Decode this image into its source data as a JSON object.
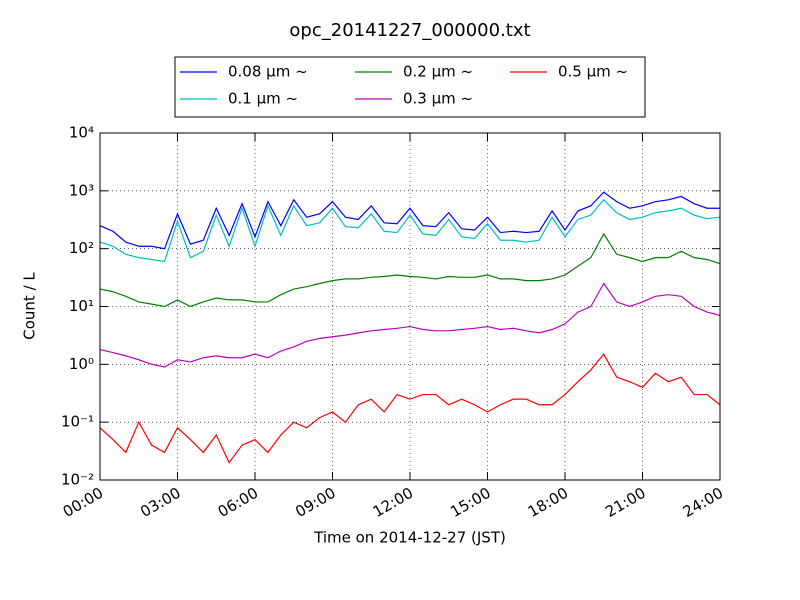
{
  "chart_data": {
    "type": "line",
    "title": "opc_20141227_000000.txt",
    "x_label": "Time on 2014-12-27 (JST)",
    "y_label": "Count / L",
    "log_y": true,
    "grid": true,
    "legend": "upper center",
    "x": [
      0,
      0.5,
      1,
      1.5,
      2,
      2.5,
      3,
      3.5,
      4,
      4.5,
      5,
      5.5,
      6,
      6.5,
      7,
      7.5,
      8,
      8.5,
      9,
      9.5,
      10,
      10.5,
      11,
      11.5,
      12,
      12.5,
      13,
      13.5,
      14,
      14.5,
      15,
      15.5,
      16,
      16.5,
      17,
      17.5,
      18,
      18.5,
      19,
      19.5,
      20,
      20.5,
      21,
      21.5,
      22,
      22.5,
      23,
      23.5,
      24
    ],
    "xlim": [
      0,
      24
    ],
    "xticks": [
      {
        "value": 0,
        "label": "00:00"
      },
      {
        "value": 3,
        "label": "03:00"
      },
      {
        "value": 6,
        "label": "06:00"
      },
      {
        "value": 9,
        "label": "09:00"
      },
      {
        "value": 12,
        "label": "12:00"
      },
      {
        "value": 15,
        "label": "15:00"
      },
      {
        "value": 18,
        "label": "18:00"
      },
      {
        "value": 21,
        "label": "21:00"
      },
      {
        "value": 24,
        "label": "24:00"
      }
    ],
    "ylim": [
      0.01,
      10000
    ],
    "yticks": [
      {
        "value": 0.01,
        "label": "10⁻²"
      },
      {
        "value": 0.1,
        "label": "10⁻¹"
      },
      {
        "value": 1,
        "label": "10⁰"
      },
      {
        "value": 10,
        "label": "10¹"
      },
      {
        "value": 100,
        "label": "10²"
      },
      {
        "value": 1000,
        "label": "10³"
      },
      {
        "value": 10000,
        "label": "10⁴"
      }
    ],
    "series": [
      {
        "name": "0.08 μm ~",
        "color": "#0000ff",
        "values": [
          250,
          200,
          130,
          110,
          110,
          100,
          400,
          120,
          140,
          500,
          170,
          600,
          160,
          650,
          250,
          700,
          350,
          400,
          650,
          350,
          320,
          550,
          280,
          270,
          500,
          250,
          240,
          420,
          220,
          210,
          350,
          190,
          200,
          190,
          200,
          450,
          210,
          450,
          550,
          950,
          650,
          500,
          550,
          650,
          700,
          800,
          600,
          500,
          500
        ]
      },
      {
        "name": "0.1 μm ~",
        "color": "#00bfbf",
        "values": [
          130,
          110,
          80,
          70,
          65,
          60,
          300,
          70,
          90,
          380,
          110,
          500,
          110,
          550,
          170,
          550,
          250,
          280,
          500,
          240,
          230,
          400,
          200,
          190,
          380,
          180,
          170,
          320,
          160,
          150,
          270,
          140,
          140,
          130,
          140,
          350,
          160,
          320,
          380,
          700,
          420,
          320,
          350,
          420,
          450,
          500,
          380,
          330,
          350
        ]
      },
      {
        "name": "0.2 μm ~",
        "color": "#008000",
        "values": [
          20,
          18,
          15,
          12,
          11,
          10,
          13,
          10,
          12,
          14,
          13,
          13,
          12,
          12,
          16,
          20,
          22,
          25,
          28,
          30,
          30,
          32,
          33,
          35,
          33,
          32,
          30,
          33,
          32,
          32,
          35,
          30,
          30,
          28,
          28,
          30,
          35,
          50,
          70,
          180,
          80,
          70,
          60,
          70,
          70,
          90,
          70,
          65,
          55
        ]
      },
      {
        "name": "0.3 μm ~",
        "color": "#bf00bf",
        "values": [
          1.8,
          1.6,
          1.4,
          1.2,
          1.0,
          0.9,
          1.2,
          1.1,
          1.3,
          1.4,
          1.3,
          1.3,
          1.5,
          1.3,
          1.7,
          2.0,
          2.5,
          2.8,
          3.0,
          3.2,
          3.5,
          3.8,
          4.0,
          4.2,
          4.5,
          4.0,
          3.8,
          3.8,
          4.0,
          4.2,
          4.5,
          4.0,
          4.2,
          3.8,
          3.5,
          4.0,
          5.0,
          8,
          10,
          25,
          12,
          10,
          12,
          15,
          16,
          15,
          10,
          8,
          7
        ]
      },
      {
        "name": "0.5 μm ~",
        "color": "#ff0000",
        "values": [
          0.08,
          0.05,
          0.03,
          0.1,
          0.04,
          0.03,
          0.08,
          0.05,
          0.03,
          0.06,
          0.02,
          0.04,
          0.05,
          0.03,
          0.06,
          0.1,
          0.08,
          0.12,
          0.15,
          0.1,
          0.2,
          0.25,
          0.15,
          0.3,
          0.25,
          0.3,
          0.3,
          0.2,
          0.25,
          0.2,
          0.15,
          0.2,
          0.25,
          0.25,
          0.2,
          0.2,
          0.3,
          0.5,
          0.8,
          1.5,
          0.6,
          0.5,
          0.4,
          0.7,
          0.5,
          0.6,
          0.3,
          0.3,
          0.2
        ]
      }
    ]
  }
}
